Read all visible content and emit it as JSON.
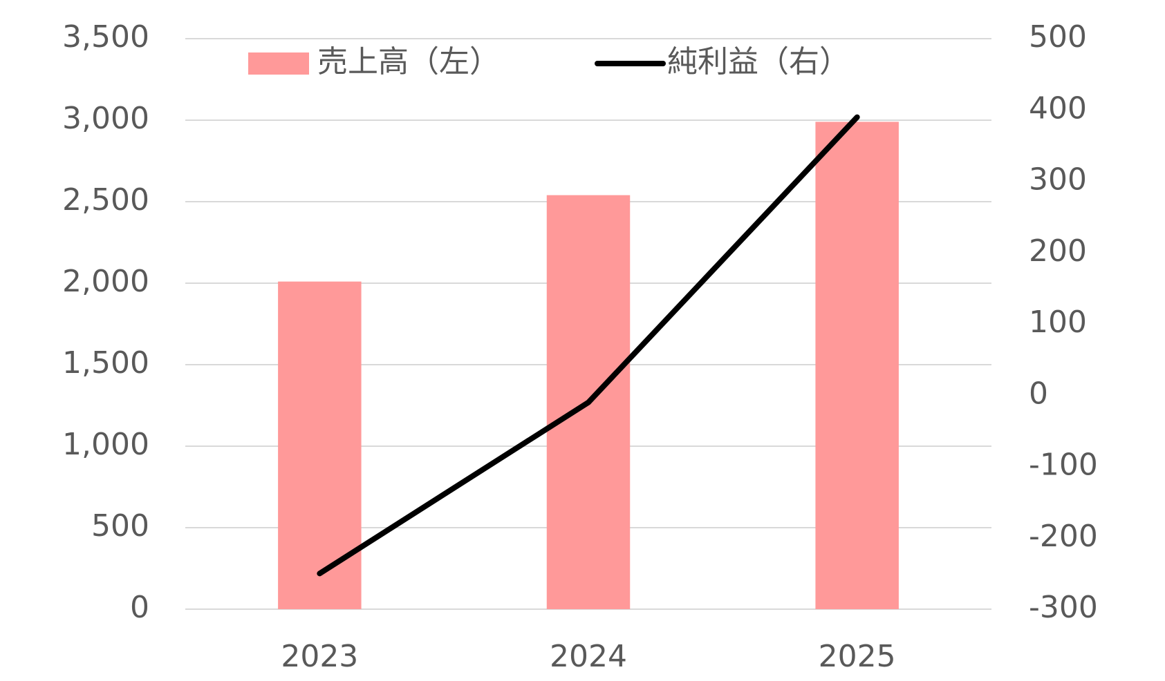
{
  "chart_data": {
    "type": "bar-line",
    "categories": [
      "2023",
      "2024",
      "2025"
    ],
    "series": [
      {
        "name": "売上高（左）",
        "type": "bar",
        "color": "#ff9999",
        "values": [
          2010,
          2540,
          2990
        ]
      },
      {
        "name": "純利益（右）",
        "type": "line",
        "color": "#000000",
        "axis": "y2",
        "values": [
          -250,
          -10,
          390
        ]
      }
    ],
    "ylim": [
      0,
      3500
    ],
    "yticks": [
      0,
      {
        "value": 500,
        "label": "500"
      },
      {
        "value": 1000,
        "label": "1,000"
      },
      {
        "value": 1500,
        "label": "1,500"
      },
      {
        "value": 2000,
        "label": "2,000"
      },
      {
        "value": 2500,
        "label": "2,500"
      },
      {
        "value": 3000,
        "label": "3,000"
      },
      {
        "value": 3500,
        "label": "3,500"
      }
    ],
    "y2lim": [
      -300,
      500
    ],
    "y2ticks": [
      -300,
      -200,
      -100,
      0,
      100,
      200,
      300,
      400,
      500
    ],
    "grid": true,
    "legend": "top"
  }
}
